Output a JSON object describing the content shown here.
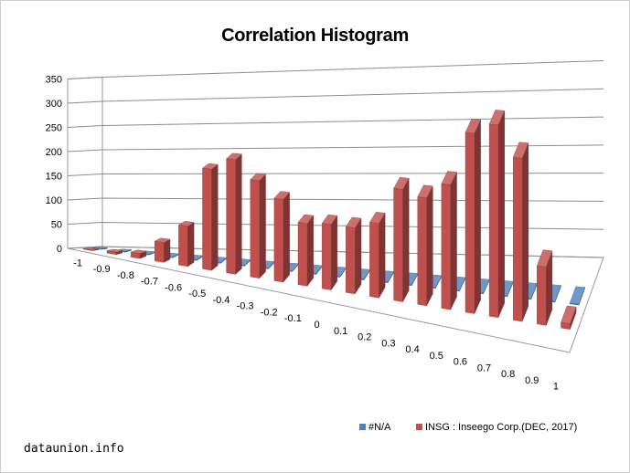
{
  "chart_data": {
    "type": "bar",
    "title": "Correlation Histogram",
    "categories": [
      "-1",
      "-0.9",
      "-0.8",
      "-0.7",
      "-0.6",
      "-0.5",
      "-0.4",
      "-0.3",
      "-0.2",
      "-0.1",
      "0",
      "0.1",
      "0.2",
      "0.3",
      "0.4",
      "0.5",
      "0.6",
      "0.7",
      "0.8",
      "0.9",
      "1"
    ],
    "series": [
      {
        "name": "#N/A",
        "color": "#4f81bd",
        "values": [
          1,
          0,
          0,
          0,
          0,
          0,
          0,
          0,
          0,
          0,
          0,
          0,
          0,
          0,
          0,
          0,
          0,
          0,
          0,
          0,
          0
        ]
      },
      {
        "name": "INSG : Inseego Corp.(DEC, 2017)",
        "color": "#c0504d",
        "values": [
          0,
          5,
          10,
          40,
          80,
          200,
          225,
          190,
          160,
          120,
          125,
          125,
          140,
          210,
          200,
          230,
          330,
          350,
          295,
          105,
          10
        ]
      }
    ],
    "y_ticks": [
      "0",
      "50",
      "100",
      "150",
      "200",
      "250",
      "300",
      "350"
    ],
    "ylim": [
      0,
      350
    ],
    "grid": true,
    "legend": "bottom-right"
  },
  "watermark": "dataunion.info"
}
